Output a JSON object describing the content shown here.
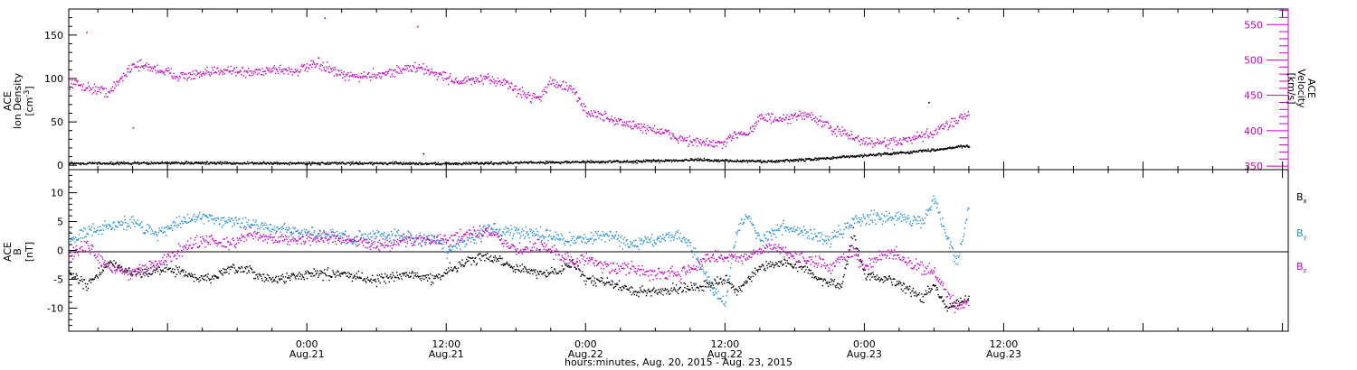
{
  "colors": {
    "black": "#000000",
    "magenta": "#cc00cc",
    "blue": "#1f8fe6",
    "background": "#ffffff"
  },
  "chart_data": [
    {
      "type": "scatter",
      "panel": "top",
      "xlabel": "hours:minutes, Aug. 20, 2015 - Aug. 23, 2015",
      "x_range_hours": [
        -20.5,
        84.5
      ],
      "x_ticks": [
        {
          "hours": 0,
          "time": "0:00",
          "date": "Aug.21"
        },
        {
          "hours": 12,
          "time": "12:00",
          "date": "Aug.21"
        },
        {
          "hours": 24,
          "time": "0:00",
          "date": "Aug.22"
        },
        {
          "hours": 36,
          "time": "12:00",
          "date": "Aug.22"
        },
        {
          "hours": 48,
          "time": "0:00",
          "date": "Aug.23"
        },
        {
          "hours": 60,
          "time": "12:00",
          "date": "Aug.23"
        }
      ],
      "left_axis": {
        "label_lines": [
          "ACE",
          "Ion Density"
        ],
        "unit_base": "[cm",
        "unit_sup": "-3",
        "unit_tail": "]",
        "ylim": [
          -5,
          180
        ],
        "ticks": [
          "0",
          "50",
          "100",
          "150"
        ],
        "tick_values": [
          0,
          50,
          100,
          150
        ]
      },
      "right_axis": {
        "label_lines": [
          "ACE",
          "Velocity",
          "[km/s]"
        ],
        "ylim": [
          345,
          572
        ],
        "ticks": [
          "350",
          "400",
          "450",
          "500",
          "550"
        ],
        "tick_values": [
          350,
          400,
          450,
          500,
          550
        ]
      },
      "series": [
        {
          "role": "ion density (left axis)",
          "color": "#000000",
          "anchors": [
            [
              -20.5,
              3
            ],
            [
              -16,
              3
            ],
            [
              -10,
              3.5
            ],
            [
              -5,
              3
            ],
            [
              0,
              3
            ],
            [
              6,
              3
            ],
            [
              12,
              2.5
            ],
            [
              20,
              4
            ],
            [
              28,
              5
            ],
            [
              33,
              7
            ],
            [
              36,
              6
            ],
            [
              40,
              5
            ],
            [
              44,
              8
            ],
            [
              48,
              12
            ],
            [
              52,
              16
            ],
            [
              55,
              20
            ],
            [
              56,
              22
            ],
            [
              57,
              23
            ]
          ],
          "noise": 1.2,
          "outliers": [
            [
              56,
              170
            ],
            [
              53.5,
              73
            ],
            [
              10,
              14
            ]
          ]
        },
        {
          "role": "velocity (right axis)",
          "color": "#cc00cc",
          "anchors": [
            [
              -20.5,
              470
            ],
            [
              -19,
              462
            ],
            [
              -17,
              455
            ],
            [
              -15,
              495
            ],
            [
              -13,
              488
            ],
            [
              -11,
              478
            ],
            [
              -9,
              480
            ],
            [
              -7,
              488
            ],
            [
              -5,
              482
            ],
            [
              -3,
              488
            ],
            [
              -1,
              485
            ],
            [
              1,
              495
            ],
            [
              3,
              478
            ],
            [
              5,
              478
            ],
            [
              7,
              483
            ],
            [
              9,
              490
            ],
            [
              10,
              488
            ],
            [
              11,
              482
            ],
            [
              13,
              470
            ],
            [
              15,
              473
            ],
            [
              17,
              470
            ],
            [
              18,
              458
            ],
            [
              19,
              450
            ],
            [
              20,
              448
            ],
            [
              21,
              470
            ],
            [
              22,
              465
            ],
            [
              23,
              455
            ],
            [
              24,
              428
            ],
            [
              26,
              418
            ],
            [
              28,
              408
            ],
            [
              30,
              402
            ],
            [
              32,
              390
            ],
            [
              34,
              383
            ],
            [
              36,
              382
            ],
            [
              37,
              398
            ],
            [
              38,
              398
            ],
            [
              39,
              420
            ],
            [
              41,
              415
            ],
            [
              43,
              425
            ],
            [
              45,
              405
            ],
            [
              46,
              398
            ],
            [
              48,
              385
            ],
            [
              50,
              383
            ],
            [
              52,
              388
            ],
            [
              54,
              398
            ],
            [
              55,
              408
            ],
            [
              56,
              418
            ],
            [
              57,
              425
            ]
          ],
          "noise": 6,
          "outliers": [
            [
              -19,
              540
            ],
            [
              1.5,
              560
            ],
            [
              9.5,
              548
            ],
            [
              -15,
              405
            ]
          ]
        }
      ]
    },
    {
      "type": "scatter",
      "panel": "bottom",
      "left_axis": {
        "label_lines": [
          "ACE",
          "B",
          "[nT]"
        ],
        "ylim": [
          -14,
          14
        ],
        "ticks": [
          "-10",
          "-5",
          "0",
          "5",
          "10"
        ],
        "tick_values": [
          -10,
          -5,
          0,
          5,
          10
        ]
      },
      "zero_line": true,
      "legend_position": "right",
      "series": [
        {
          "name": "B",
          "sub": "x",
          "color": "#000000",
          "anchors": [
            [
              -20.5,
              -4
            ],
            [
              -19,
              -6
            ],
            [
              -17,
              -2
            ],
            [
              -15,
              -4
            ],
            [
              -12,
              -3
            ],
            [
              -9,
              -5
            ],
            [
              -6,
              -3
            ],
            [
              -3,
              -5
            ],
            [
              0,
              -4
            ],
            [
              3,
              -4
            ],
            [
              6,
              -5
            ],
            [
              9,
              -4
            ],
            [
              11,
              -5
            ],
            [
              12,
              -3.5
            ],
            [
              14,
              -1.5
            ],
            [
              16,
              -1
            ],
            [
              18,
              -3
            ],
            [
              20,
              -4
            ],
            [
              22,
              -3
            ],
            [
              23,
              -2
            ],
            [
              24,
              -5
            ],
            [
              26,
              -5.5
            ],
            [
              28,
              -7
            ],
            [
              30,
              -7
            ],
            [
              32,
              -6.5
            ],
            [
              34,
              -6
            ],
            [
              35,
              -5.5
            ],
            [
              36,
              -5
            ],
            [
              37,
              -7
            ],
            [
              38,
              -5
            ],
            [
              39,
              -3
            ],
            [
              41,
              -2
            ],
            [
              43,
              -3
            ],
            [
              44,
              -5
            ],
            [
              46,
              -6
            ],
            [
              47,
              3
            ],
            [
              48,
              -4
            ],
            [
              50,
              -5
            ],
            [
              52,
              -7
            ],
            [
              53,
              -8
            ],
            [
              54,
              -6
            ],
            [
              55,
              -10
            ],
            [
              56,
              -9
            ],
            [
              57,
              -8
            ]
          ],
          "noise": 0.7
        },
        {
          "name": "B",
          "sub": "y",
          "color": "#1f8fe6",
          "anchors": [
            [
              -20.5,
              2
            ],
            [
              -18,
              4
            ],
            [
              -15,
              5
            ],
            [
              -13,
              3
            ],
            [
              -11,
              5
            ],
            [
              -9,
              6
            ],
            [
              -6,
              5
            ],
            [
              -3,
              4
            ],
            [
              0,
              3
            ],
            [
              2,
              3
            ],
            [
              4,
              2
            ],
            [
              6,
              3
            ],
            [
              9,
              2
            ],
            [
              11,
              2
            ],
            [
              12,
              0
            ],
            [
              14,
              2
            ],
            [
              16,
              4
            ],
            [
              18,
              3
            ],
            [
              20,
              3
            ],
            [
              22,
              2
            ],
            [
              24,
              2
            ],
            [
              26,
              3
            ],
            [
              28,
              1
            ],
            [
              30,
              2
            ],
            [
              32,
              3
            ],
            [
              33,
              1
            ],
            [
              34,
              -3
            ],
            [
              35,
              -7
            ],
            [
              36,
              -9
            ],
            [
              37,
              4
            ],
            [
              38,
              6
            ],
            [
              39,
              2
            ],
            [
              41,
              4
            ],
            [
              43,
              3
            ],
            [
              45,
              2
            ],
            [
              47,
              5
            ],
            [
              49,
              6
            ],
            [
              51,
              6
            ],
            [
              53,
              5
            ],
            [
              54,
              9
            ],
            [
              55,
              3
            ],
            [
              56,
              -2
            ],
            [
              57,
              8
            ]
          ],
          "noise": 0.9
        },
        {
          "name": "B",
          "sub": "z",
          "color": "#cc00cc",
          "anchors": [
            [
              -20.5,
              -1
            ],
            [
              -19,
              1
            ],
            [
              -17,
              -3
            ],
            [
              -15,
              -4
            ],
            [
              -13,
              -2
            ],
            [
              -11,
              0
            ],
            [
              -9,
              2
            ],
            [
              -7,
              1
            ],
            [
              -5,
              3
            ],
            [
              -3,
              2
            ],
            [
              0,
              2
            ],
            [
              3,
              2
            ],
            [
              6,
              1
            ],
            [
              9,
              2
            ],
            [
              12,
              2
            ],
            [
              14,
              3
            ],
            [
              16,
              3
            ],
            [
              18,
              0
            ],
            [
              20,
              1
            ],
            [
              22,
              -1
            ],
            [
              23,
              -2
            ],
            [
              24,
              -1
            ],
            [
              26,
              -3
            ],
            [
              28,
              -3
            ],
            [
              30,
              -4
            ],
            [
              32,
              -4
            ],
            [
              33,
              -3
            ],
            [
              34,
              -2
            ],
            [
              35,
              -1
            ],
            [
              36,
              -1
            ],
            [
              38,
              -1
            ],
            [
              40,
              1
            ],
            [
              42,
              -1
            ],
            [
              44,
              -2
            ],
            [
              45,
              -3
            ],
            [
              46,
              -1
            ],
            [
              47,
              0
            ],
            [
              48,
              -3
            ],
            [
              50,
              0
            ],
            [
              52,
              -2
            ],
            [
              54,
              -4
            ],
            [
              55,
              -7
            ],
            [
              56,
              -10
            ],
            [
              57,
              -9
            ]
          ],
          "noise": 0.9
        }
      ]
    }
  ]
}
